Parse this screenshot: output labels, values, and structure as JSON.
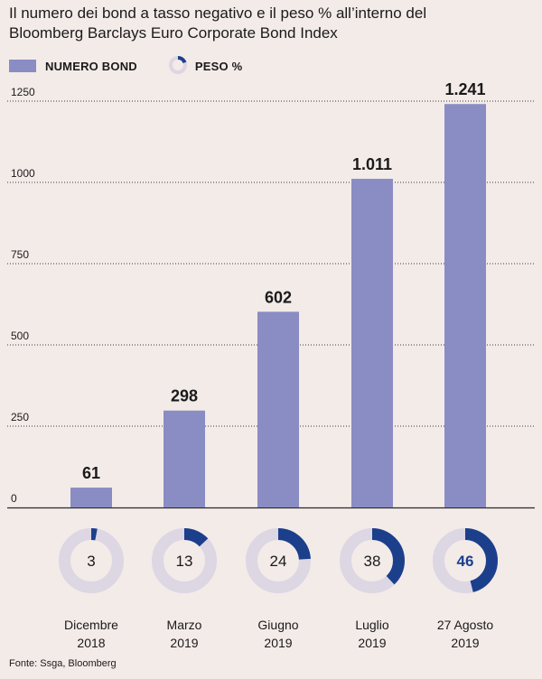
{
  "title_line1": "Il numero dei bond a tasso negativo e il peso %  all’interno del",
  "title_line2": "Bloomberg Barclays Euro Corporate Bond Index",
  "legend": {
    "bars_label": "NUMERO BOND",
    "donut_label": "PESO %"
  },
  "source": "Fonte: Ssga, Bloomberg",
  "colors": {
    "bar": "#8a8cc4",
    "donut_fill": "#1c3f8c",
    "donut_track": "#ddd6e3",
    "background": "#f3ebe8",
    "grid": "#3a3a3a"
  },
  "chart_data": {
    "type": "bar",
    "ylim": [
      0,
      1250
    ],
    "yticks": [
      "0",
      "250",
      "500",
      "750",
      "1000",
      "1250"
    ],
    "ytick_values": [
      0,
      250,
      500,
      750,
      1000,
      1250
    ],
    "categories": [
      [
        "Dicembre",
        "2018"
      ],
      [
        "Marzo",
        "2019"
      ],
      [
        "Giugno",
        "2019"
      ],
      [
        "Luglio",
        "2019"
      ],
      [
        "27 Agosto",
        "2019"
      ]
    ],
    "values": [
      61,
      298,
      602,
      1011,
      1241
    ],
    "value_labels": [
      "61",
      "298",
      "602",
      "1.011",
      "1.241"
    ],
    "peso_percent": [
      3,
      13,
      24,
      38,
      46
    ],
    "peso_labels": [
      "3",
      "13",
      "24",
      "38",
      "46"
    ],
    "grid": true
  }
}
